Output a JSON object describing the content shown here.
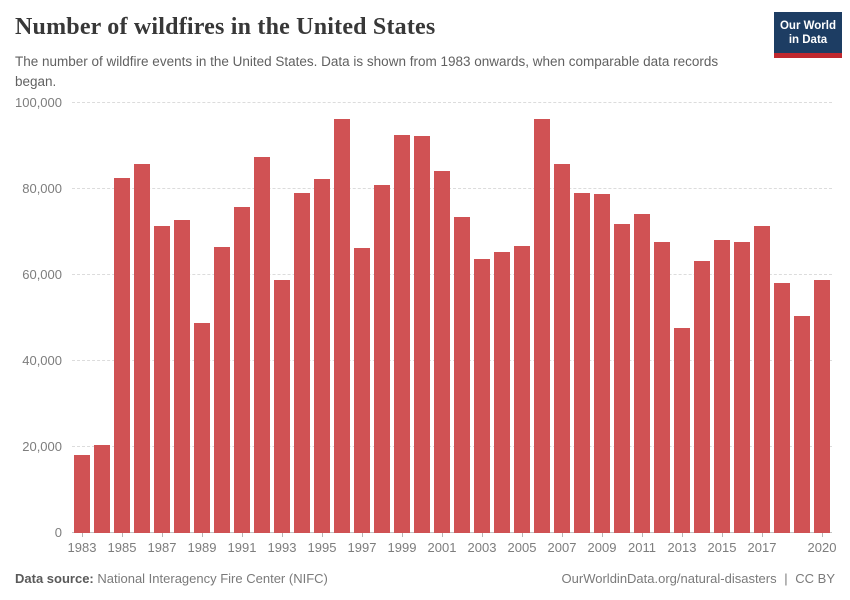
{
  "header": {
    "title": "Number of wildfires in the United States",
    "subtitle": "The number of wildfire events in the United States. Data is shown from 1983 onwards, when comparable data records began.",
    "logo": {
      "line1": "Our World",
      "line2": "in Data"
    }
  },
  "colors": {
    "bar": "#d05254",
    "logo_background": "#1d3d63",
    "logo_accent": "#c0282e",
    "gridline": "#dcdcdc",
    "axis_text": "#7d7d7d"
  },
  "chart_data": {
    "type": "bar",
    "title": "Number of wildfires in the United States",
    "xlabel": "",
    "ylabel": "",
    "ylim": [
      0,
      100000
    ],
    "grid": "horizontal-dashed",
    "legend": "none",
    "x": [
      1983,
      1984,
      1985,
      1986,
      1987,
      1988,
      1989,
      1990,
      1991,
      1992,
      1993,
      1994,
      1995,
      1996,
      1997,
      1998,
      1999,
      2000,
      2001,
      2002,
      2003,
      2004,
      2005,
      2006,
      2007,
      2008,
      2009,
      2010,
      2011,
      2012,
      2013,
      2014,
      2015,
      2016,
      2017,
      2018,
      2019,
      2020
    ],
    "values": [
      18229,
      20493,
      82591,
      85907,
      71300,
      72750,
      48949,
      66481,
      75754,
      87394,
      58810,
      79107,
      82234,
      96363,
      66196,
      81043,
      92487,
      92250,
      84079,
      73457,
      63629,
      65461,
      66753,
      96385,
      85705,
      78979,
      78792,
      71971,
      74126,
      67774,
      47579,
      63312,
      68151,
      67743,
      71499,
      58083,
      50477,
      58950
    ],
    "yticks": [
      {
        "value": 0,
        "label": "0"
      },
      {
        "value": 20000,
        "label": "20,000"
      },
      {
        "value": 40000,
        "label": "40,000"
      },
      {
        "value": 60000,
        "label": "60,000"
      },
      {
        "value": 80000,
        "label": "80,000"
      },
      {
        "value": 100000,
        "label": "100,000"
      }
    ],
    "xtick_labels": [
      "1983",
      "1985",
      "1987",
      "1989",
      "1991",
      "1993",
      "1995",
      "1997",
      "1999",
      "2001",
      "2003",
      "2005",
      "2007",
      "2009",
      "2011",
      "2013",
      "2015",
      "2017",
      "2020"
    ]
  },
  "footer": {
    "source_label": "Data source:",
    "source_value": "National Interagency Fire Center (NIFC)",
    "link": "OurWorldinData.org/natural-disasters",
    "separator": "|",
    "license": "CC BY"
  }
}
